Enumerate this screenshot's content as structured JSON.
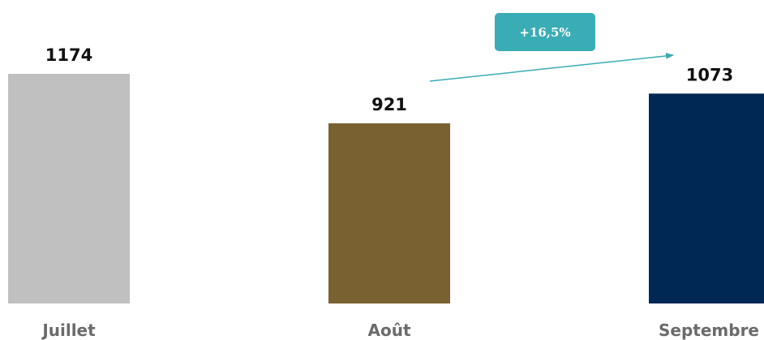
{
  "chart_data": {
    "type": "bar",
    "categories": [
      "Juillet",
      "Août",
      "Septembre"
    ],
    "values": [
      1174,
      921,
      1073
    ],
    "value_labels": [
      "1174",
      "921",
      "1073"
    ],
    "colors": [
      "#c0c0c0",
      "#7a6131",
      "#002855"
    ],
    "ylim": [
      0,
      1174
    ],
    "grid": false,
    "annotation": {
      "text": "+16,5%",
      "from": "Août",
      "to": "Septembre",
      "color": "#3aacb5"
    }
  }
}
